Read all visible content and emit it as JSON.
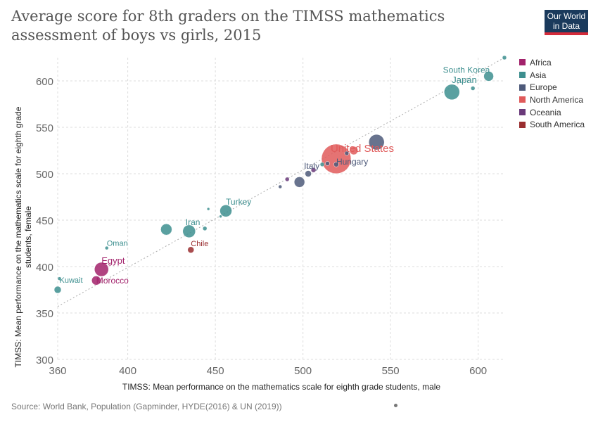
{
  "header": {
    "title": "Average score for 8th graders on the TIMSS mathematics assessment of boys vs girls, 2015",
    "logo_line1": "Our World",
    "logo_line2": "in Data"
  },
  "footer": {
    "source": "Source: World Bank, Population (Gapminder, HYDE(2016) & UN (2019))"
  },
  "colors": {
    "Africa": "#a2226b",
    "Asia": "#3d8f8f",
    "Europe": "#4e5a7a",
    "North America": "#e05a5a",
    "Oceania": "#6a3a7a",
    "South America": "#9a2e30",
    "grid": "#dddddd",
    "diagonal": "#aaaaaa"
  },
  "chart_data": {
    "type": "scatter",
    "title": "Average score for 8th graders on the TIMSS mathematics assessment of boys vs girls, 2015",
    "xlabel": "TIMSS: Mean performance on the mathematics scale for eighth grade students, male",
    "ylabel": "TIMSS: Mean performance on the mathematics scale for eighth grade students, female",
    "xlim": [
      360,
      615
    ],
    "ylim": [
      300,
      625
    ],
    "xticks": [
      360,
      400,
      450,
      500,
      550,
      600
    ],
    "yticks": [
      300,
      350,
      400,
      450,
      500,
      550,
      600
    ],
    "grid": true,
    "legend_position": "right",
    "legend": [
      "Africa",
      "Asia",
      "Europe",
      "North America",
      "Oceania",
      "South America"
    ],
    "points": [
      {
        "x": 360,
        "y": 375,
        "region": "Asia",
        "r": 5
      },
      {
        "x": 361,
        "y": 387,
        "region": "Asia",
        "r": 2.5,
        "label": "Kuwait"
      },
      {
        "x": 385,
        "y": 397,
        "region": "Africa",
        "r": 10,
        "label": "Egypt"
      },
      {
        "x": 382,
        "y": 385,
        "region": "Africa",
        "r": 6.5,
        "label": "Morocco"
      },
      {
        "x": 388,
        "y": 420,
        "region": "Asia",
        "r": 2.5,
        "label": "Oman"
      },
      {
        "x": 422,
        "y": 440,
        "region": "Asia",
        "r": 8
      },
      {
        "x": 435,
        "y": 438,
        "region": "Asia",
        "r": 9,
        "label": "Iran"
      },
      {
        "x": 436,
        "y": 418,
        "region": "South America",
        "r": 4.5,
        "label": "Chile"
      },
      {
        "x": 444,
        "y": 441,
        "region": "Asia",
        "r": 3
      },
      {
        "x": 446,
        "y": 462,
        "region": "Asia",
        "r": 2
      },
      {
        "x": 456,
        "y": 460,
        "region": "Asia",
        "r": 8.5,
        "label": "Turkey"
      },
      {
        "x": 453,
        "y": 454,
        "region": "Asia",
        "r": 2
      },
      {
        "x": 487,
        "y": 486,
        "region": "Europe",
        "r": 2.5
      },
      {
        "x": 491,
        "y": 494,
        "region": "Oceania",
        "r": 3
      },
      {
        "x": 498,
        "y": 491,
        "region": "Europe",
        "r": 7.5
      },
      {
        "x": 503,
        "y": 500,
        "region": "Europe",
        "r": 4.5,
        "label": "Italy"
      },
      {
        "x": 506,
        "y": 504,
        "region": "Oceania",
        "r": 3.5
      },
      {
        "x": 511,
        "y": 510,
        "region": "Asia",
        "r": 3
      },
      {
        "x": 514,
        "y": 511,
        "region": "Europe",
        "r": 3
      },
      {
        "x": 519,
        "y": 516,
        "region": "North America",
        "r": 21,
        "label": "United States"
      },
      {
        "x": 519,
        "y": 510,
        "region": "Europe",
        "r": 3.5,
        "label": "Hungary"
      },
      {
        "x": 525,
        "y": 522,
        "region": "Europe",
        "r": 3
      },
      {
        "x": 529,
        "y": 525,
        "region": "North America",
        "r": 6
      },
      {
        "x": 542,
        "y": 534,
        "region": "Europe",
        "r": 11
      },
      {
        "x": 585,
        "y": 588,
        "region": "Asia",
        "r": 11,
        "label": "Japan"
      },
      {
        "x": 597,
        "y": 592,
        "region": "Asia",
        "r": 3
      },
      {
        "x": 606,
        "y": 605,
        "region": "Asia",
        "r": 7,
        "label": "South Korea"
      },
      {
        "x": 615,
        "y": 625,
        "region": "Asia",
        "r": 3
      }
    ]
  }
}
